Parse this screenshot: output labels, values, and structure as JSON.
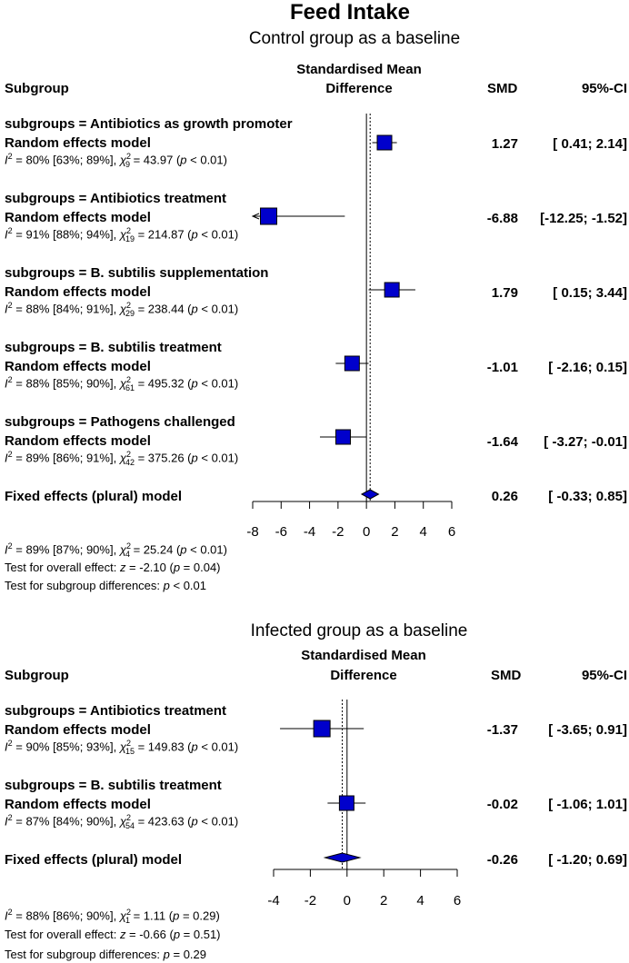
{
  "title": "Feed Intake",
  "panels": [
    {
      "subtitle": "Control group as a baseline",
      "col_subgroup": "Subgroup",
      "col_smd_diff_line1": "Standardised Mean",
      "col_smd_diff_line2": "Difference",
      "col_smd": "SMD",
      "col_ci": "95%-CI",
      "rows": [
        {
          "group": "subgroups = Antibiotics as growth promoter",
          "model": "Random effects model",
          "het": {
            "i2": "80% [63%; 89%],",
            "df": "9",
            "chi": "= 43.97 (",
            "p": "< 0.01)"
          },
          "smd": "1.27",
          "ci": "[ 0.41; 2.14]"
        },
        {
          "group": "subgroups = Antibiotics treatment",
          "model": "Random effects model",
          "het": {
            "i2": "91% [88%; 94%],",
            "df": "19",
            "chi": "= 214.87 (",
            "p": "< 0.01)"
          },
          "smd": "-6.88",
          "ci": "[-12.25; -1.52]"
        },
        {
          "group": "subgroups = B. subtilis supplementation",
          "model": "Random effects model",
          "het": {
            "i2": "88% [84%; 91%],",
            "df": "29",
            "chi": "= 238.44 (",
            "p": "< 0.01)"
          },
          "smd": "1.79",
          "ci": "[ 0.15; 3.44]"
        },
        {
          "group": "subgroups = B. subtilis treatment",
          "model": "Random effects model",
          "het": {
            "i2": "88% [85%; 90%],",
            "df": "61",
            "chi": "= 495.32 (",
            "p": "< 0.01)"
          },
          "smd": "-1.01",
          "ci": "[ -2.16; 0.15]"
        },
        {
          "group": "subgroups = Pathogens challenged",
          "model": "Random effects model",
          "het": {
            "i2": "89% [86%; 91%],",
            "df": "42",
            "chi": "= 375.26 (",
            "p": "< 0.01)"
          },
          "smd": "-1.64",
          "ci": "[ -3.27; -0.01]"
        }
      ],
      "overall_label": "Fixed effects (plural) model",
      "overall_smd": "0.26",
      "overall_ci": "[ -0.33; 0.85]",
      "footer_het": {
        "i2": "89% [87%; 90%],",
        "df": "4",
        "chi": "= 25.24 (",
        "p": "< 0.01)"
      },
      "footer_overall": {
        "prefix": "Test for overall effect: ",
        "z": "z",
        "zval": " = -2.10 (",
        "p": "p",
        "pval": " = 0.04)"
      },
      "footer_subgroup": {
        "prefix": "Test for subgroup differences:  ",
        "p": "p",
        "pval": " < 0.01"
      }
    },
    {
      "subtitle": "Infected group as a baseline",
      "col_subgroup": "Subgroup",
      "col_smd_diff_line1": "Standardised Mean",
      "col_smd_diff_line2": "Difference",
      "col_smd": "SMD",
      "col_ci": "95%-CI",
      "rows": [
        {
          "group": "subgroups = Antibiotics treatment",
          "model": "Random effects model",
          "het": {
            "i2": "90% [85%; 93%],",
            "df": "15",
            "chi": "= 149.83 (",
            "p": "< 0.01)"
          },
          "smd": "-1.37",
          "ci": "[ -3.65; 0.91]"
        },
        {
          "group": "subgroups = B. subtilis treatment",
          "model": "Random effects model",
          "het": {
            "i2": "87% [84%; 90%],",
            "df": "54",
            "chi": "= 423.63 (",
            "p": "< 0.01)"
          },
          "smd": "-0.02",
          "ci": "[ -1.06; 1.01]"
        }
      ],
      "overall_label": "Fixed effects (plural) model",
      "overall_smd": "-0.26",
      "overall_ci": "[ -1.20; 0.69]",
      "footer_het": {
        "i2": "88% [86%; 90%],",
        "df": "1",
        "chi": "= 1.11 (",
        "p": "= 0.29)"
      },
      "footer_overall": {
        "prefix": "Test for overall effect: ",
        "z": "z",
        "zval": " = -0.66 (",
        "p": "p",
        "pval": " = 0.51)"
      },
      "footer_subgroup": {
        "prefix": "Test for subgroup differences:  ",
        "p": "p",
        "pval": " = 0.29"
      }
    }
  ],
  "chart_data": [
    {
      "type": "forest",
      "subtitle": "Control group as a baseline",
      "xlabel": "Standardised Mean Difference",
      "xlim": [
        -8,
        6
      ],
      "xticks": [
        -8,
        -6,
        -4,
        -2,
        0,
        2,
        4,
        6
      ],
      "fixed_effect_line": 0.26,
      "series": [
        {
          "name": "subgroups = Antibiotics as growth promoter",
          "smd": 1.27,
          "lo": 0.41,
          "hi": 2.14
        },
        {
          "name": "subgroups = Antibiotics treatment",
          "smd": -6.88,
          "lo": -12.25,
          "hi": -1.52
        },
        {
          "name": "subgroups = B. subtilis supplementation",
          "smd": 1.79,
          "lo": 0.15,
          "hi": 3.44
        },
        {
          "name": "subgroups = B. subtilis treatment",
          "smd": -1.01,
          "lo": -2.16,
          "hi": 0.15
        },
        {
          "name": "subgroups = Pathogens challenged",
          "smd": -1.64,
          "lo": -3.27,
          "hi": -0.01
        }
      ],
      "overall": {
        "smd": 0.26,
        "lo": -0.33,
        "hi": 0.85
      },
      "colors": {
        "box": "#0000cc",
        "diamond": "#0000cc"
      }
    },
    {
      "type": "forest",
      "subtitle": "Infected group as a baseline",
      "xlabel": "Standardised Mean Difference",
      "xlim": [
        -4,
        6
      ],
      "xticks": [
        -4,
        -2,
        0,
        2,
        4,
        6
      ],
      "fixed_effect_line": -0.26,
      "series": [
        {
          "name": "subgroups = Antibiotics treatment",
          "smd": -1.37,
          "lo": -3.65,
          "hi": 0.91
        },
        {
          "name": "subgroups = B. subtilis treatment",
          "smd": -0.02,
          "lo": -1.06,
          "hi": 1.01
        }
      ],
      "overall": {
        "smd": -0.26,
        "lo": -1.2,
        "hi": 0.69
      },
      "colors": {
        "box": "#0000cc",
        "diamond": "#0000cc"
      }
    }
  ]
}
